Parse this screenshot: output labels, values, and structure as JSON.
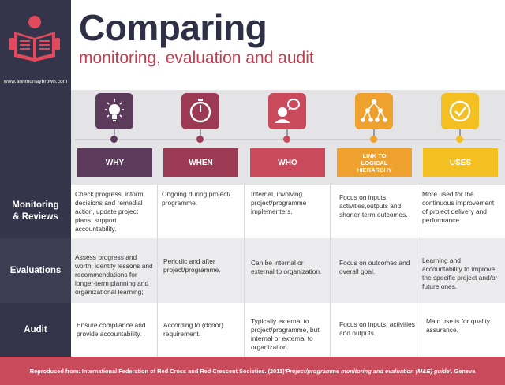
{
  "header": {
    "title": "Comparing",
    "subtitle": "monitoring, evaluation and audit",
    "website": "www.annmurraybrown.com",
    "logo_icon": "reading-person-icon"
  },
  "columns": [
    {
      "label": "WHY",
      "icon": "lightbulb-icon",
      "color": "#5b3a5c"
    },
    {
      "label": "WHEN",
      "icon": "stopwatch-icon",
      "color": "#9c3a54"
    },
    {
      "label": "WHO",
      "icon": "person-speech-icon",
      "color": "#c94a5a"
    },
    {
      "label": "LINK TO LOGICAL HIERARCHY",
      "icon": "hierarchy-icon",
      "color": "#eea12e"
    },
    {
      "label": "USES",
      "icon": "checkmark-icon",
      "color": "#f4c021"
    }
  ],
  "rows": [
    {
      "label": "Monitoring & Reviews",
      "cells": [
        "Check progress, inform decisions and remedial action, update project plans, support accountability.",
        "Ongoing during project/ programme.",
        "Internal, involving project/programme implementers.",
        "Focus on inputs, activities,outputs and shorter-term outcomes.",
        "More used for the continuous improvement of project delivery and performance."
      ]
    },
    {
      "label": "Evaluations",
      "cells": [
        "Assess progress and worth, identify lessons and recommendations for longer-term planning and organizational learning;",
        "Periodic and after project/programme.",
        "Can be internal or external to organization.",
        "Focus on outcomes and overall goal.",
        "Learning and accountability to improve the specific project and/or future ones."
      ]
    },
    {
      "label": "Audit",
      "cells": [
        "Ensure compliance and provide accountability.",
        "According to (donor) requirement.",
        "Typically external to project/programme, but internal or external to organization.",
        "Focus on inputs, activities and outputs.",
        "Main use is for quality assurance."
      ]
    }
  ],
  "footer": {
    "prefix": "Reproduced from: International Federation of Red Cross and Red Crescent Societies. (2011) ",
    "title": "'Project/programme monitoring and evaluation (M&E) guide'",
    "suffix": ". Geneva"
  }
}
